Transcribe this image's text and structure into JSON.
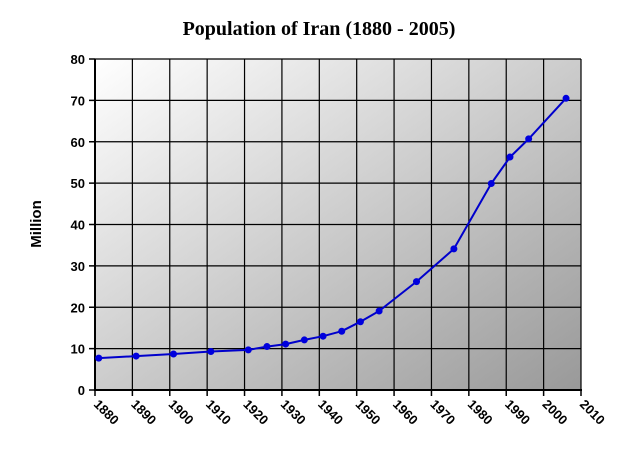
{
  "chart_data": {
    "type": "line",
    "title": "Population of Iran (1880 - 2005)",
    "xlabel": "",
    "ylabel": "Million",
    "xlim": [
      1880,
      2010
    ],
    "ylim": [
      0,
      80
    ],
    "x_ticks": [
      1880,
      1890,
      1900,
      1910,
      1920,
      1930,
      1940,
      1950,
      1960,
      1970,
      1980,
      1990,
      2000,
      2010
    ],
    "x_tick_labels": [
      "1880",
      "1890",
      "1900",
      "1910",
      "1920",
      "1930",
      "1940",
      "1950",
      "1960",
      "1970",
      "1980",
      "1990",
      "2000",
      "2010"
    ],
    "y_ticks": [
      0,
      10,
      20,
      30,
      40,
      50,
      60,
      70,
      80
    ],
    "y_tick_labels": [
      "0",
      "10",
      "20",
      "30",
      "40",
      "50",
      "60",
      "70",
      "80"
    ],
    "grid": true,
    "legend": null,
    "series": [
      {
        "name": "Population",
        "color": "#0000cc",
        "marker": "circle",
        "x": [
          1881,
          1891,
          1901,
          1911,
          1921,
          1926,
          1931,
          1936,
          1941,
          1946,
          1951,
          1956,
          1966,
          1976,
          1986,
          1991,
          1996,
          2006
        ],
        "values": [
          7.7,
          8.2,
          8.7,
          9.3,
          9.7,
          10.5,
          11.1,
          12.1,
          13.0,
          14.2,
          16.5,
          19.1,
          26.2,
          34.1,
          49.9,
          56.3,
          60.7,
          70.5
        ]
      }
    ]
  },
  "colors": {
    "line": "#0000cc",
    "marker": "#0000dd",
    "grid": "#000000",
    "plot_bg_start": "#ffffff",
    "plot_bg_end": "#999999"
  }
}
